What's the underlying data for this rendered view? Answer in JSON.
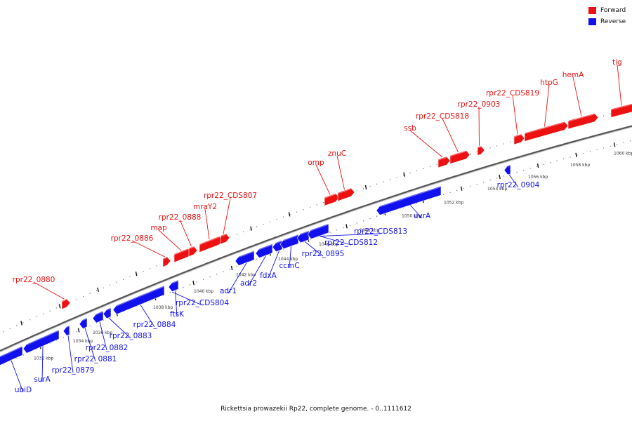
{
  "colors": {
    "forward": "#ee1111",
    "reverse": "#1111ee",
    "axis": "#444444"
  },
  "legend": [
    {
      "label": "Forward",
      "color": "#ee1111"
    },
    {
      "label": "Reverse",
      "color": "#1111ee"
    }
  ],
  "caption": "Rickettsia prowazekii Rp22, complete genome. - 0..1111612",
  "ticks": [
    "1032 kbp",
    "1034 kbp",
    "1036 kbp",
    "1038 kbp",
    "1040 kbp",
    "1042 kbp",
    "1044 kbp",
    "1046 kbp",
    "1048 kbp",
    "1050 kbp",
    "1052 kbp",
    "1054 kbp",
    "1056 kbp",
    "1058 kbp",
    "1060 kbp"
  ],
  "forward_genes": [
    {
      "name": "rpr22_0880"
    },
    {
      "name": "rpr22_0886"
    },
    {
      "name": "map"
    },
    {
      "name": "rpr22_0888"
    },
    {
      "name": "mraY2"
    },
    {
      "name": "rpr22_CDS807"
    },
    {
      "name": "omp"
    },
    {
      "name": "znuC"
    },
    {
      "name": "ssb"
    },
    {
      "name": "rpr22_CDS818"
    },
    {
      "name": "rpr22_0903"
    },
    {
      "name": "rpr22_CDS819"
    },
    {
      "name": "htpG"
    },
    {
      "name": "hemA"
    },
    {
      "name": "tig"
    }
  ],
  "reverse_genes": [
    {
      "name": "ubiD"
    },
    {
      "name": "surA"
    },
    {
      "name": "rpr22_0879"
    },
    {
      "name": "rpr22_0881"
    },
    {
      "name": "rpr22_0882"
    },
    {
      "name": "rpr22_0883"
    },
    {
      "name": "rpr22_0884"
    },
    {
      "name": "ftsK"
    },
    {
      "name": "rpr22_CDS804"
    },
    {
      "name": "adr1"
    },
    {
      "name": "adr2"
    },
    {
      "name": "fdxA"
    },
    {
      "name": "ccmC"
    },
    {
      "name": "rpr22_0895"
    },
    {
      "name": "rpr22_CDS812"
    },
    {
      "name": "rpr22_CDS813"
    },
    {
      "name": "uvrA"
    },
    {
      "name": "rpr22_0904"
    }
  ]
}
